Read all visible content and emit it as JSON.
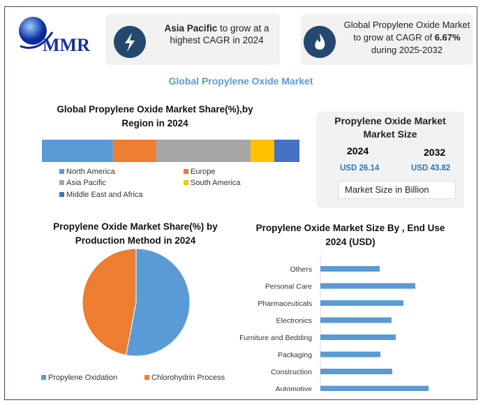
{
  "logo": {
    "text": "MMR"
  },
  "cards": [
    {
      "bold": "Asia Pacific",
      "text": " to grow at a highest CAGR in 2024",
      "icon": "lightning-icon"
    },
    {
      "text": "Global Propylene Oxide Market to grow at CAGR of ",
      "bold": "6.67%",
      "text2": " during 2025-2032",
      "icon": "flame-icon"
    }
  ],
  "main_title": "Global Propylene Oxide Market",
  "market_size": {
    "title": "Propylene Oxide Market Market Size",
    "years": [
      "2024",
      "2032"
    ],
    "values": [
      "USD 26.14",
      "USD 43.82"
    ],
    "note": "Market Size in Billion"
  },
  "colors": {
    "blue": "#5b9bd5",
    "orange": "#ed7d31",
    "gray": "#a5a5a5",
    "yellow": "#ffc000",
    "darkblue": "#4472c4",
    "navy": "#24486e",
    "title_blue": "#5b9bd5"
  },
  "chart_data": [
    {
      "type": "bar",
      "stacked": true,
      "title": "Global Propylene Oxide Market Share(%),by Region in 2024",
      "categories": [
        "North America",
        "Europe",
        "Asia Pacific",
        "South America",
        "Middle East and Africa"
      ],
      "values": [
        27.6,
        16.8,
        36.6,
        9.2,
        9.8
      ],
      "legend": "bottom"
    },
    {
      "type": "pie",
      "title": "Propylene Oxide Market Share(%) by Production Method  in 2024",
      "categories": [
        "Propylene Oxidation",
        "Chlorohydrin Process"
      ],
      "values": [
        53,
        47
      ],
      "legend": "bottom"
    },
    {
      "type": "bar",
      "orientation": "horizontal",
      "title": "Propylene Oxide Market Size By , End Use 2024  (USD)",
      "categories": [
        "Others",
        "Personal Care",
        "Pharmaceuticals",
        "Electronics",
        "Furniture and Bedding",
        "Packaging",
        "Construction",
        "Automotive"
      ],
      "values": [
        85,
        136,
        119,
        102,
        108,
        86,
        103,
        155
      ]
    }
  ]
}
